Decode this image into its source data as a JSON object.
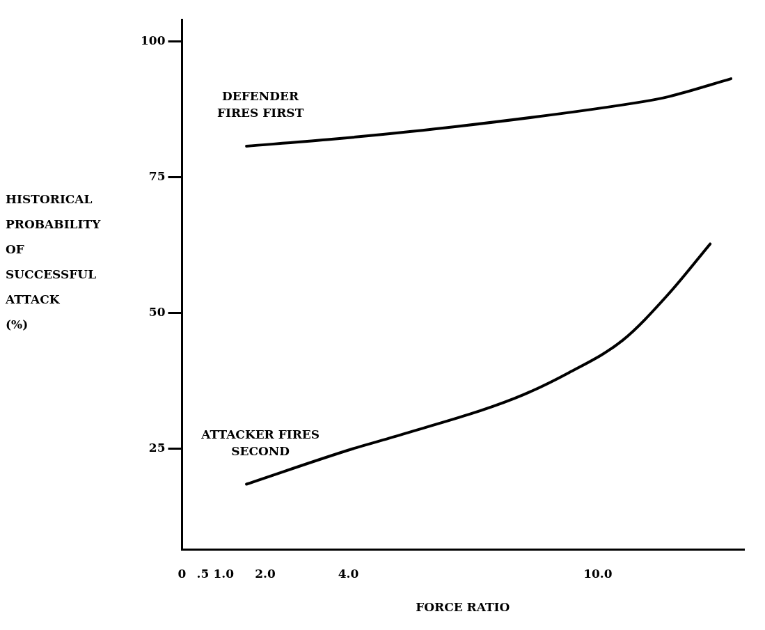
{
  "chart_data": {
    "type": "line",
    "xlabel": "FORCE RATIO",
    "ylabel": "HISTORICAL PROBABILITY OF SUCCESSFUL ATTACK (%)",
    "xlim": [
      0,
      13.5
    ],
    "xticks": [
      0,
      {
        "value": 0.5,
        "label": ".5"
      },
      {
        "value": 1,
        "label": "1.0"
      },
      {
        "value": 2,
        "label": "2.0"
      },
      {
        "value": 4,
        "label": "4.0"
      },
      {
        "value": 10,
        "label": "10.0"
      }
    ],
    "ylim": [
      6.5,
      104
    ],
    "yticks": [
      25,
      50,
      75,
      100
    ],
    "marker": "none",
    "series": [
      {
        "name": "DEFENDER FIRES FIRST",
        "color": "#000000",
        "x": [
          1.55,
          3.5,
          6.6,
          11.1,
          11.7,
          13.2
        ],
        "values": [
          80.7,
          81.9,
          84.3,
          88.9,
          89.8,
          93.1
        ]
      },
      {
        "name": "ATTACKER FIRES SECOND",
        "color": "#000000",
        "x": [
          1.55,
          4.1,
          5,
          8,
          9.3,
          10.6,
          11.7,
          12.7
        ],
        "values": [
          18.5,
          25,
          27,
          34.3,
          39,
          45,
          53.5,
          62.7
        ]
      }
    ]
  }
}
